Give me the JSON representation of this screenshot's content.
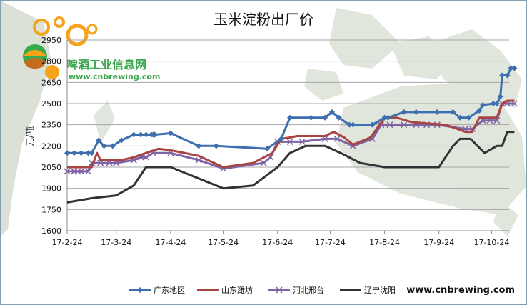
{
  "chart_data": {
    "type": "line",
    "title": "玉米淀粉出厂价",
    "ylabel": "元/吨",
    "xlabel": "",
    "ylim": [
      1600,
      2950
    ],
    "yticks": [
      1600,
      1750,
      1900,
      2050,
      2200,
      2350,
      2500,
      2650,
      2800,
      2950
    ],
    "xlim": [
      "2017-02-24",
      "2017-11-03"
    ],
    "xticks": [
      "17-2-24",
      "17-3-24",
      "17-4-24",
      "17-5-24",
      "17-6-24",
      "17-7-24",
      "17-8-24",
      "17-9-24",
      "17-10-24"
    ],
    "xtick_dates": [
      "2017-02-24",
      "2017-03-24",
      "2017-04-24",
      "2017-05-24",
      "2017-06-24",
      "2017-07-24",
      "2017-08-24",
      "2017-09-24",
      "2017-10-24"
    ],
    "grid": "horizontal",
    "legend_position": "bottom",
    "series": [
      {
        "name": "广东地区",
        "color": "#3d6eae",
        "marker": "diamond",
        "points": [
          [
            "2017-02-24",
            2150
          ],
          [
            "2017-02-28",
            2150
          ],
          [
            "2017-03-04",
            2150
          ],
          [
            "2017-03-08",
            2150
          ],
          [
            "2017-03-10",
            2150
          ],
          [
            "2017-03-14",
            2240
          ],
          [
            "2017-03-17",
            2200
          ],
          [
            "2017-03-22",
            2200
          ],
          [
            "2017-03-27",
            2240
          ],
          [
            "2017-04-03",
            2280
          ],
          [
            "2017-04-07",
            2280
          ],
          [
            "2017-04-10",
            2280
          ],
          [
            "2017-04-13",
            2280
          ],
          [
            "2017-04-14",
            2280
          ],
          [
            "2017-04-15",
            2280
          ],
          [
            "2017-04-24",
            2290
          ],
          [
            "2017-05-10",
            2200
          ],
          [
            "2017-05-20",
            2200
          ],
          [
            "2017-06-18",
            2180
          ],
          [
            "2017-06-26",
            2250
          ],
          [
            "2017-07-01",
            2400
          ],
          [
            "2017-07-13",
            2400
          ],
          [
            "2017-07-21",
            2400
          ],
          [
            "2017-07-25",
            2440
          ],
          [
            "2017-07-29",
            2400
          ],
          [
            "2017-08-04",
            2350
          ],
          [
            "2017-08-06",
            2350
          ],
          [
            "2017-08-17",
            2350
          ],
          [
            "2017-08-24",
            2400
          ],
          [
            "2017-08-26",
            2400
          ],
          [
            "2017-09-04",
            2440
          ],
          [
            "2017-09-11",
            2440
          ],
          [
            "2017-09-23",
            2440
          ],
          [
            "2017-10-02",
            2440
          ],
          [
            "2017-10-06",
            2400
          ],
          [
            "2017-10-11",
            2400
          ],
          [
            "2017-10-17",
            2450
          ],
          [
            "2017-10-19",
            2490
          ],
          [
            "2017-10-25",
            2500
          ],
          [
            "2017-10-27",
            2500
          ],
          [
            "2017-10-29",
            2550
          ],
          [
            "2017-10-30",
            2700
          ],
          [
            "2017-11-02",
            2700
          ],
          [
            "2017-11-04",
            2750
          ],
          [
            "2017-11-06",
            2750
          ]
        ]
      },
      {
        "name": "山东潍坊",
        "color": "#a84542",
        "marker": "none",
        "points": [
          [
            "2017-02-24",
            2050
          ],
          [
            "2017-03-10",
            2050
          ],
          [
            "2017-03-13",
            2150
          ],
          [
            "2017-03-15",
            2100
          ],
          [
            "2017-03-27",
            2100
          ],
          [
            "2017-04-03",
            2120
          ],
          [
            "2017-04-10",
            2150
          ],
          [
            "2017-04-17",
            2180
          ],
          [
            "2017-04-24",
            2170
          ],
          [
            "2017-05-10",
            2130
          ],
          [
            "2017-05-24",
            2050
          ],
          [
            "2017-06-10",
            2080
          ],
          [
            "2017-06-21",
            2150
          ],
          [
            "2017-06-26",
            2250
          ],
          [
            "2017-07-01",
            2260
          ],
          [
            "2017-07-05",
            2270
          ],
          [
            "2017-07-13",
            2270
          ],
          [
            "2017-07-21",
            2270
          ],
          [
            "2017-07-26",
            2300
          ],
          [
            "2017-08-01",
            2260
          ],
          [
            "2017-08-06",
            2210
          ],
          [
            "2017-08-16",
            2260
          ],
          [
            "2017-08-24",
            2400
          ],
          [
            "2017-08-31",
            2400
          ],
          [
            "2017-09-08",
            2370
          ],
          [
            "2017-09-17",
            2360
          ],
          [
            "2017-09-28",
            2350
          ],
          [
            "2017-10-09",
            2300
          ],
          [
            "2017-10-13",
            2300
          ],
          [
            "2017-10-17",
            2400
          ],
          [
            "2017-10-22",
            2400
          ],
          [
            "2017-10-27",
            2400
          ],
          [
            "2017-10-30",
            2500
          ],
          [
            "2017-11-02",
            2520
          ],
          [
            "2017-11-06",
            2520
          ]
        ]
      },
      {
        "name": "河北邢台",
        "color": "#7f63a4",
        "marker": "x",
        "points": [
          [
            "2017-02-24",
            2020
          ],
          [
            "2017-02-28",
            2020
          ],
          [
            "2017-03-02",
            2020
          ],
          [
            "2017-03-04",
            2020
          ],
          [
            "2017-03-08",
            2020
          ],
          [
            "2017-03-10",
            2080
          ],
          [
            "2017-03-15",
            2080
          ],
          [
            "2017-03-20",
            2080
          ],
          [
            "2017-03-24",
            2080
          ],
          [
            "2017-04-03",
            2100
          ],
          [
            "2017-04-07",
            2120
          ],
          [
            "2017-04-10",
            2120
          ],
          [
            "2017-04-14",
            2150
          ],
          [
            "2017-04-24",
            2150
          ],
          [
            "2017-05-10",
            2100
          ],
          [
            "2017-05-24",
            2040
          ],
          [
            "2017-06-16",
            2080
          ],
          [
            "2017-06-20",
            2120
          ],
          [
            "2017-06-24",
            2230
          ],
          [
            "2017-07-01",
            2230
          ],
          [
            "2017-07-08",
            2230
          ],
          [
            "2017-07-21",
            2250
          ],
          [
            "2017-07-28",
            2250
          ],
          [
            "2017-08-06",
            2200
          ],
          [
            "2017-08-17",
            2250
          ],
          [
            "2017-08-22",
            2350
          ],
          [
            "2017-08-27",
            2350
          ],
          [
            "2017-09-04",
            2350
          ],
          [
            "2017-09-11",
            2350
          ],
          [
            "2017-09-17",
            2350
          ],
          [
            "2017-09-23",
            2350
          ],
          [
            "2017-10-09",
            2320
          ],
          [
            "2017-10-13",
            2320
          ],
          [
            "2017-10-19",
            2380
          ],
          [
            "2017-10-23",
            2380
          ],
          [
            "2017-10-27",
            2380
          ],
          [
            "2017-10-30",
            2500
          ],
          [
            "2017-11-02",
            2500
          ],
          [
            "2017-11-06",
            2500
          ]
        ]
      },
      {
        "name": "辽宁沈阳",
        "color": "#333333",
        "marker": "none",
        "points": [
          [
            "2017-02-24",
            1800
          ],
          [
            "2017-03-10",
            1830
          ],
          [
            "2017-03-24",
            1850
          ],
          [
            "2017-04-03",
            1920
          ],
          [
            "2017-04-10",
            2050
          ],
          [
            "2017-04-24",
            2050
          ],
          [
            "2017-05-10",
            1970
          ],
          [
            "2017-05-24",
            1900
          ],
          [
            "2017-06-10",
            1920
          ],
          [
            "2017-06-24",
            2050
          ],
          [
            "2017-07-01",
            2150
          ],
          [
            "2017-07-10",
            2200
          ],
          [
            "2017-07-21",
            2200
          ],
          [
            "2017-07-30",
            2150
          ],
          [
            "2017-08-10",
            2080
          ],
          [
            "2017-08-24",
            2050
          ],
          [
            "2017-09-10",
            2050
          ],
          [
            "2017-09-24",
            2050
          ],
          [
            "2017-10-02",
            2200
          ],
          [
            "2017-10-06",
            2250
          ],
          [
            "2017-10-12",
            2250
          ],
          [
            "2017-10-20",
            2150
          ],
          [
            "2017-10-27",
            2200
          ],
          [
            "2017-10-30",
            2200
          ],
          [
            "2017-11-02",
            2300
          ],
          [
            "2017-11-06",
            2300
          ]
        ]
      }
    ]
  },
  "watermark": {
    "brand": "啤酒工业信息网",
    "url": "www.cnbrewing.com"
  },
  "footer": {
    "url": "www.cnbrewing.com"
  },
  "colors": {
    "background_top": "#f5f8fa",
    "map_land": "#cfd6c6",
    "map_sea": "#ffffff",
    "logo_orange": "#f4a31a",
    "logo_green": "#3aa84c"
  }
}
